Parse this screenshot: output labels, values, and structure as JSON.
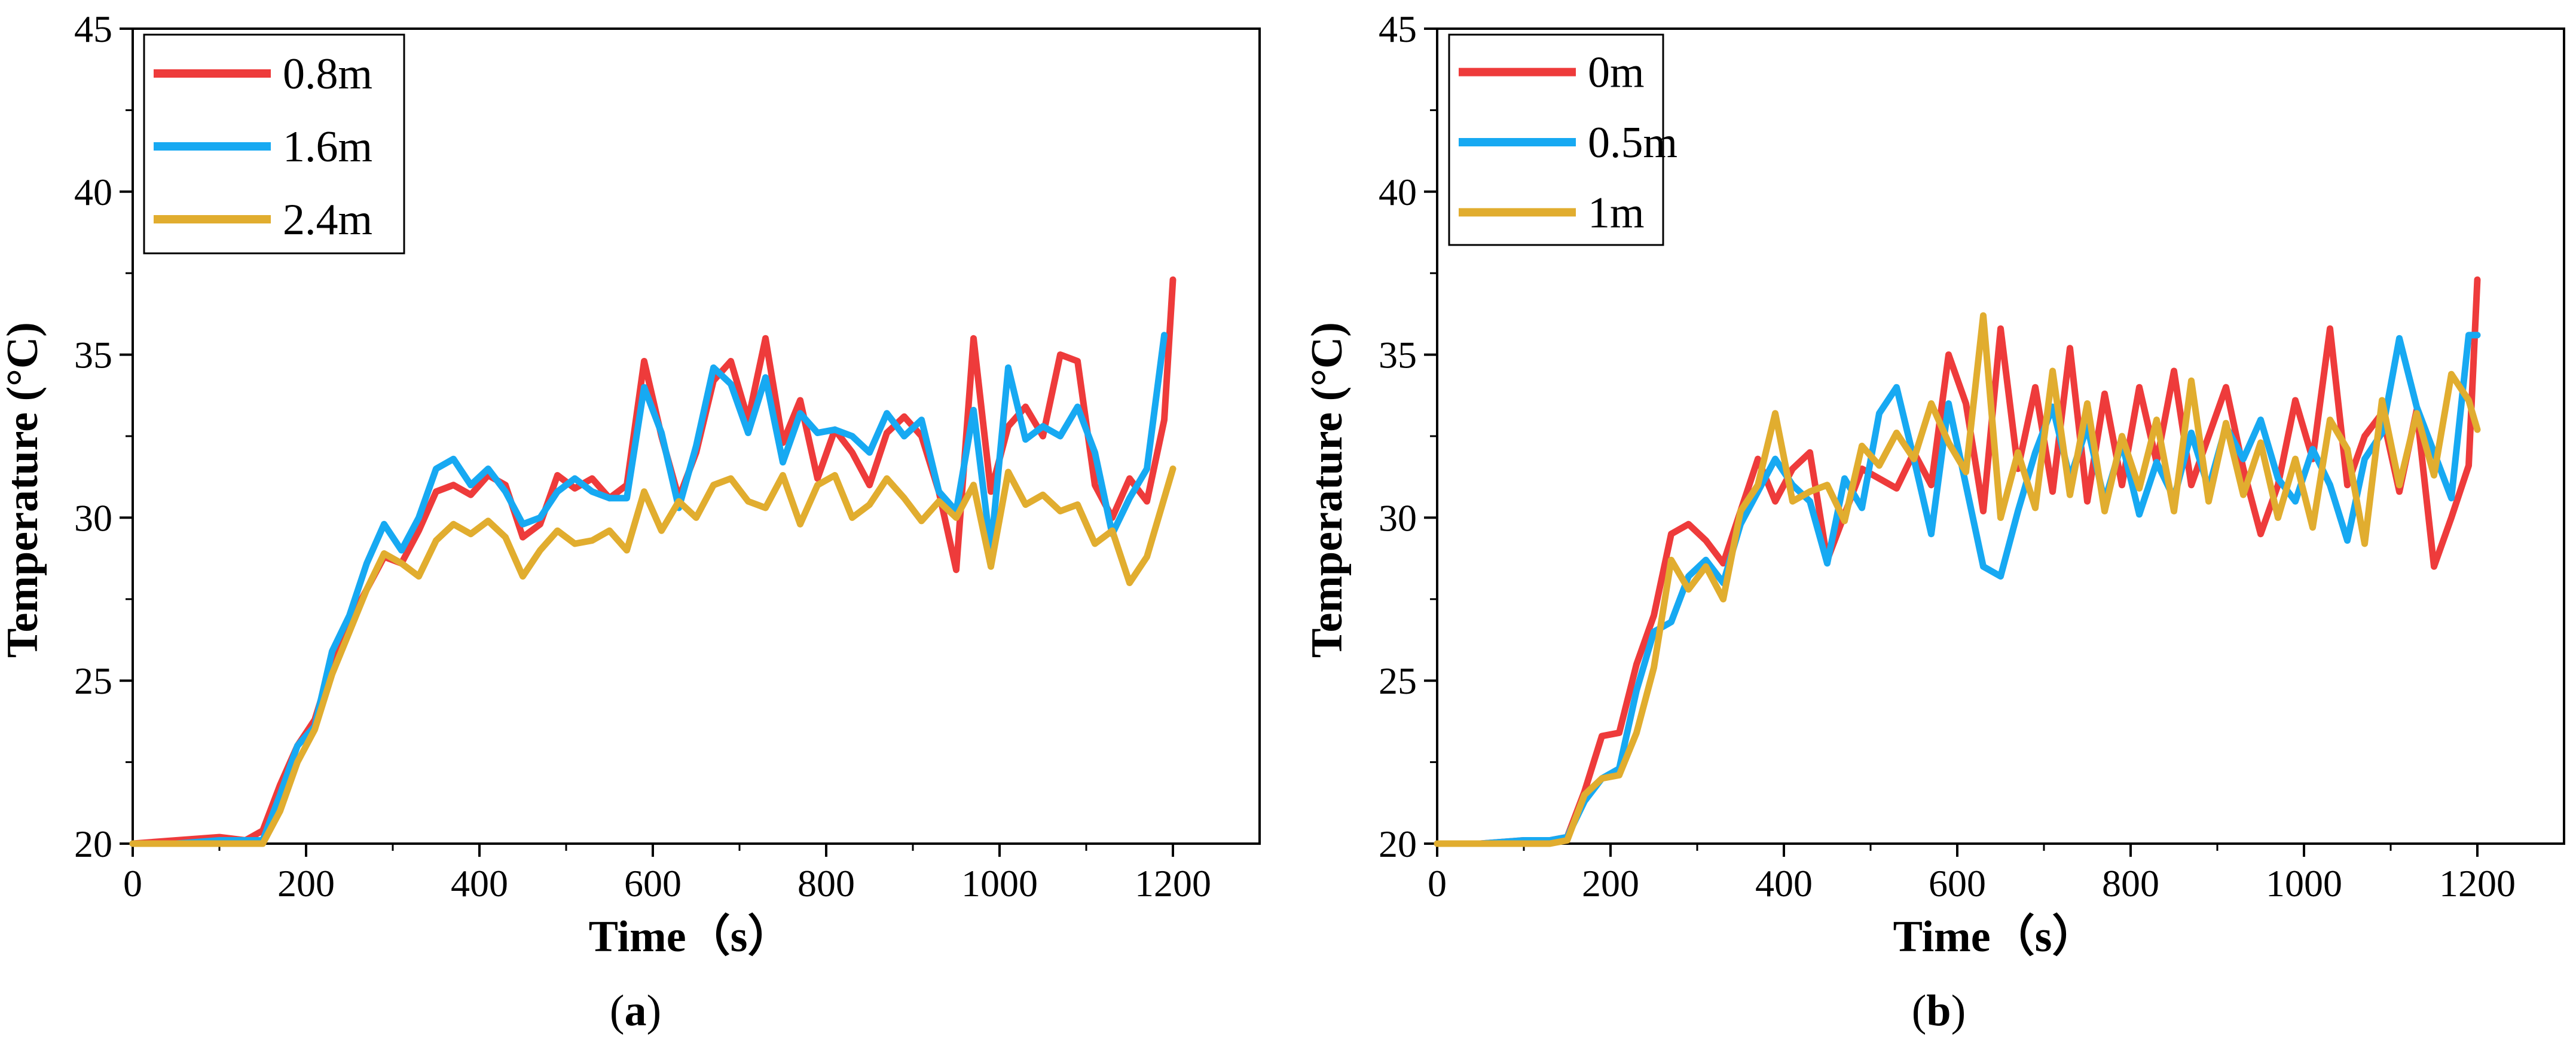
{
  "chart_data": [
    {
      "type": "line",
      "panel_label": "a",
      "xlabel": "Time（s）",
      "ylabel": "Temperature (°C)",
      "xlim": [
        0,
        1300
      ],
      "ylim": [
        20,
        45
      ],
      "xticks": [
        0,
        200,
        400,
        600,
        800,
        1000,
        1200
      ],
      "yticks": [
        20,
        25,
        30,
        35,
        40,
        45
      ],
      "legend_position": "top-left",
      "series": [
        {
          "name": "0.8m",
          "color": "#ee3b3b",
          "x": [
            0,
            50,
            100,
            130,
            150,
            170,
            190,
            210,
            230,
            250,
            270,
            290,
            310,
            330,
            350,
            370,
            390,
            410,
            430,
            450,
            470,
            490,
            510,
            530,
            550,
            570,
            590,
            610,
            630,
            650,
            670,
            690,
            710,
            730,
            750,
            770,
            790,
            810,
            830,
            850,
            870,
            890,
            910,
            930,
            950,
            970,
            990,
            1010,
            1030,
            1050,
            1070,
            1090,
            1110,
            1130,
            1150,
            1170,
            1190,
            1200
          ],
          "values": [
            20,
            20.1,
            20.2,
            20.1,
            20.4,
            21.8,
            23,
            23.8,
            25.5,
            26.8,
            27.8,
            28.8,
            28.6,
            29.6,
            30.8,
            31,
            30.7,
            31.3,
            31,
            29.4,
            29.8,
            31.3,
            30.9,
            31.2,
            30.6,
            31,
            34.8,
            32.5,
            30.6,
            32,
            34.2,
            34.8,
            33,
            35.5,
            32.3,
            33.6,
            31.2,
            32.7,
            32,
            31,
            32.6,
            33.1,
            32.5,
            30.8,
            28.4,
            35.5,
            30.8,
            32.8,
            33.4,
            32.5,
            35,
            34.8,
            31,
            30,
            31.2,
            30.5,
            33,
            37.3
          ]
        },
        {
          "name": "1.6m",
          "color": "#17a9f2",
          "x": [
            0,
            50,
            100,
            130,
            150,
            170,
            190,
            210,
            230,
            250,
            270,
            290,
            310,
            330,
            350,
            370,
            390,
            410,
            430,
            450,
            470,
            490,
            510,
            530,
            550,
            570,
            590,
            610,
            630,
            650,
            670,
            690,
            710,
            730,
            750,
            770,
            790,
            810,
            830,
            850,
            870,
            890,
            910,
            930,
            950,
            970,
            990,
            1010,
            1030,
            1050,
            1070,
            1090,
            1110,
            1130,
            1150,
            1170,
            1190
          ],
          "values": [
            20,
            20,
            20.1,
            20.1,
            20.1,
            21.5,
            23,
            23.6,
            25.9,
            27,
            28.6,
            29.8,
            29,
            30,
            31.5,
            31.8,
            31,
            31.5,
            30.8,
            29.8,
            30,
            30.8,
            31.2,
            30.8,
            30.6,
            30.6,
            34,
            32.6,
            30.3,
            32.2,
            34.6,
            34.1,
            32.6,
            34.3,
            31.7,
            33.2,
            32.6,
            32.7,
            32.5,
            32,
            33.2,
            32.5,
            33,
            30.8,
            30.2,
            33.3,
            29,
            34.6,
            32.4,
            32.8,
            32.5,
            33.4,
            32,
            29.5,
            30.6,
            31.5,
            35.6
          ]
        },
        {
          "name": "2.4m",
          "color": "#e1ad2f",
          "x": [
            0,
            50,
            100,
            130,
            150,
            170,
            190,
            210,
            230,
            250,
            270,
            290,
            310,
            330,
            350,
            370,
            390,
            410,
            430,
            450,
            470,
            490,
            510,
            530,
            550,
            570,
            590,
            610,
            630,
            650,
            670,
            690,
            710,
            730,
            750,
            770,
            790,
            810,
            830,
            850,
            870,
            890,
            910,
            930,
            950,
            970,
            990,
            1010,
            1030,
            1050,
            1070,
            1090,
            1110,
            1130,
            1150,
            1170,
            1200
          ],
          "values": [
            20,
            20,
            20,
            20,
            20,
            21,
            22.5,
            23.5,
            25.2,
            26.5,
            27.8,
            28.9,
            28.6,
            28.2,
            29.3,
            29.8,
            29.5,
            29.9,
            29.4,
            28.2,
            29,
            29.6,
            29.2,
            29.3,
            29.6,
            29,
            30.8,
            29.6,
            30.5,
            30,
            31,
            31.2,
            30.5,
            30.3,
            31.3,
            29.8,
            31,
            31.3,
            30,
            30.4,
            31.2,
            30.6,
            29.9,
            30.5,
            30,
            31,
            28.5,
            31.4,
            30.4,
            30.7,
            30.2,
            30.4,
            29.2,
            29.6,
            28,
            28.8,
            31.5
          ]
        }
      ]
    },
    {
      "type": "line",
      "panel_label": "b",
      "xlabel": "Time（s）",
      "ylabel": "Temperature (°C)",
      "xlim": [
        0,
        1300
      ],
      "ylim": [
        20,
        45
      ],
      "xticks": [
        0,
        200,
        400,
        600,
        800,
        1000,
        1200
      ],
      "yticks": [
        20,
        25,
        30,
        35,
        40,
        45
      ],
      "legend_position": "top-left",
      "series": [
        {
          "name": "0m",
          "color": "#ee3b3b",
          "x": [
            0,
            50,
            100,
            130,
            150,
            170,
            190,
            210,
            230,
            250,
            270,
            290,
            310,
            330,
            350,
            370,
            390,
            410,
            430,
            450,
            470,
            490,
            510,
            530,
            550,
            570,
            590,
            610,
            630,
            650,
            670,
            690,
            710,
            730,
            750,
            770,
            790,
            810,
            830,
            850,
            870,
            890,
            910,
            930,
            950,
            970,
            990,
            1010,
            1030,
            1050,
            1070,
            1090,
            1110,
            1130,
            1150,
            1170,
            1190,
            1200
          ],
          "values": [
            20,
            20,
            20.1,
            20.1,
            20.2,
            21.6,
            23.3,
            23.4,
            25.5,
            27,
            29.5,
            29.8,
            29.3,
            28.6,
            30.2,
            31.8,
            30.5,
            31.5,
            32,
            28.7,
            30.1,
            31.5,
            31.2,
            30.9,
            32,
            31,
            35,
            33.5,
            30.2,
            35.8,
            31.5,
            34,
            30.8,
            35.2,
            30.5,
            33.8,
            31,
            34,
            31.7,
            34.5,
            31,
            32.5,
            34,
            31.5,
            29.5,
            31,
            33.6,
            31.8,
            35.8,
            31,
            32.5,
            33.2,
            30.8,
            33.3,
            28.5,
            30,
            31.6,
            37.3
          ]
        },
        {
          "name": "0.5m",
          "color": "#17a9f2",
          "x": [
            0,
            50,
            100,
            130,
            150,
            170,
            190,
            210,
            230,
            250,
            270,
            290,
            310,
            330,
            350,
            370,
            390,
            410,
            430,
            450,
            470,
            490,
            510,
            530,
            550,
            570,
            590,
            610,
            630,
            650,
            670,
            690,
            710,
            730,
            750,
            770,
            790,
            810,
            830,
            850,
            870,
            890,
            910,
            930,
            950,
            970,
            990,
            1010,
            1030,
            1050,
            1070,
            1090,
            1110,
            1130,
            1150,
            1170,
            1190,
            1200
          ],
          "values": [
            20,
            20,
            20.1,
            20.1,
            20.2,
            21.3,
            22,
            22.3,
            24.7,
            26.5,
            26.8,
            28.2,
            28.7,
            28,
            29.8,
            30.8,
            31.8,
            31,
            30.5,
            28.6,
            31.2,
            30.3,
            33.2,
            34,
            31.8,
            29.5,
            33.5,
            31,
            28.5,
            28.2,
            30.2,
            32,
            33.4,
            31.2,
            32.8,
            30.5,
            32.3,
            30.1,
            31.7,
            30.6,
            32.6,
            30.9,
            32.8,
            31.8,
            33,
            31.2,
            30.5,
            32.1,
            31,
            29.3,
            31.8,
            32.6,
            35.5,
            33.4,
            32,
            30.6,
            35.6,
            35.6
          ]
        },
        {
          "name": "1m",
          "color": "#e1ad2f",
          "x": [
            0,
            50,
            100,
            130,
            150,
            170,
            190,
            210,
            230,
            250,
            270,
            290,
            310,
            330,
            350,
            370,
            390,
            410,
            430,
            450,
            470,
            490,
            510,
            530,
            550,
            570,
            590,
            610,
            630,
            650,
            670,
            690,
            710,
            730,
            750,
            770,
            790,
            810,
            830,
            850,
            870,
            890,
            910,
            930,
            950,
            970,
            990,
            1010,
            1030,
            1050,
            1070,
            1090,
            1110,
            1130,
            1150,
            1170,
            1190,
            1200
          ],
          "values": [
            20,
            20,
            20,
            20,
            20.1,
            21.5,
            22,
            22.1,
            23.4,
            25.4,
            28.7,
            27.8,
            28.5,
            27.5,
            30.2,
            31,
            33.2,
            30.5,
            30.8,
            31,
            29.9,
            32.2,
            31.6,
            32.6,
            31.8,
            33.5,
            32.3,
            31.4,
            36.2,
            30,
            32,
            30.3,
            34.5,
            30.7,
            33.5,
            30.2,
            32.5,
            30.9,
            33,
            30.2,
            34.2,
            30.5,
            32.9,
            30.7,
            32.3,
            30,
            31.8,
            29.7,
            33,
            32.1,
            29.2,
            33.6,
            31,
            33.2,
            31.3,
            34.4,
            33.6,
            32.7
          ]
        }
      ]
    }
  ]
}
